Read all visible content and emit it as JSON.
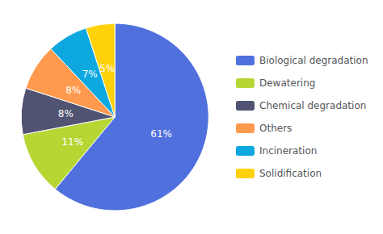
{
  "chart_data": {
    "type": "pie",
    "categories": [
      "Biological degradation",
      "Dewatering",
      "Chemical degradation",
      "Others",
      "Incineration",
      "Solidification"
    ],
    "values": [
      61,
      11,
      8,
      8,
      7,
      5
    ],
    "value_labels": [
      "61%",
      "11%",
      "8%",
      "8%",
      "7%",
      "5%"
    ],
    "data_labels": true,
    "legend": "right"
  }
}
